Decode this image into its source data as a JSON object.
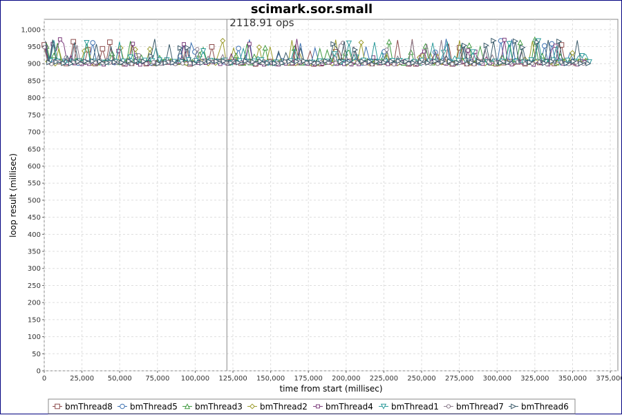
{
  "chart_data": {
    "type": "line",
    "title": "scimark.sor.small",
    "xlabel": "time from start (millisec)",
    "ylabel": "loop result (millisec)",
    "xlim": [
      0,
      380000
    ],
    "ylim": [
      0,
      1030
    ],
    "x_ticks": [
      0,
      25000,
      50000,
      75000,
      100000,
      125000,
      150000,
      175000,
      200000,
      225000,
      250000,
      275000,
      300000,
      325000,
      350000,
      375000
    ],
    "x_tick_labels": [
      "0",
      "25,000",
      "50,000",
      "75,000",
      "100,000",
      "125,000",
      "150,000",
      "175,000",
      "200,000",
      "225,000",
      "250,000",
      "275,000",
      "300,000",
      "325,000",
      "350,000",
      "375,000"
    ],
    "y_ticks": [
      0,
      50,
      100,
      150,
      200,
      250,
      300,
      350,
      400,
      450,
      500,
      550,
      600,
      650,
      700,
      750,
      800,
      850,
      900,
      950,
      1000
    ],
    "y_tick_labels": [
      "0",
      "50",
      "100",
      "150",
      "200",
      "250",
      "300",
      "350",
      "400",
      "450",
      "500",
      "550",
      "600",
      "650",
      "700",
      "750",
      "800",
      "850",
      "900",
      "950",
      "1,000"
    ],
    "grid": true,
    "legend_position": "bottom",
    "marker": {
      "x": 121000,
      "label": "2118.91 ops"
    },
    "x_start": 0,
    "x_end": 362000,
    "baseline": 903,
    "series": [
      {
        "name": "bmThread8",
        "color": "#8b4a4a",
        "marker": "square",
        "offset": 0
      },
      {
        "name": "bmThread5",
        "color": "#3a6fb0",
        "marker": "circle",
        "offset": 2
      },
      {
        "name": "bmThread3",
        "color": "#3f9a3f",
        "marker": "triangle-up",
        "offset": 3
      },
      {
        "name": "bmThread2",
        "color": "#9a9a2a",
        "marker": "diamond",
        "offset": 1
      },
      {
        "name": "bmThread4",
        "color": "#7a3a7a",
        "marker": "square-small",
        "offset": -2
      },
      {
        "name": "bmThread1",
        "color": "#2a9a9a",
        "marker": "triangle-down",
        "offset": 4
      },
      {
        "name": "bmThread7",
        "color": "#8a7a8a",
        "marker": "circle-small",
        "offset": -1
      },
      {
        "name": "bmThread6",
        "color": "#3a5a6a",
        "marker": "triangle-right",
        "offset": 1
      }
    ]
  }
}
